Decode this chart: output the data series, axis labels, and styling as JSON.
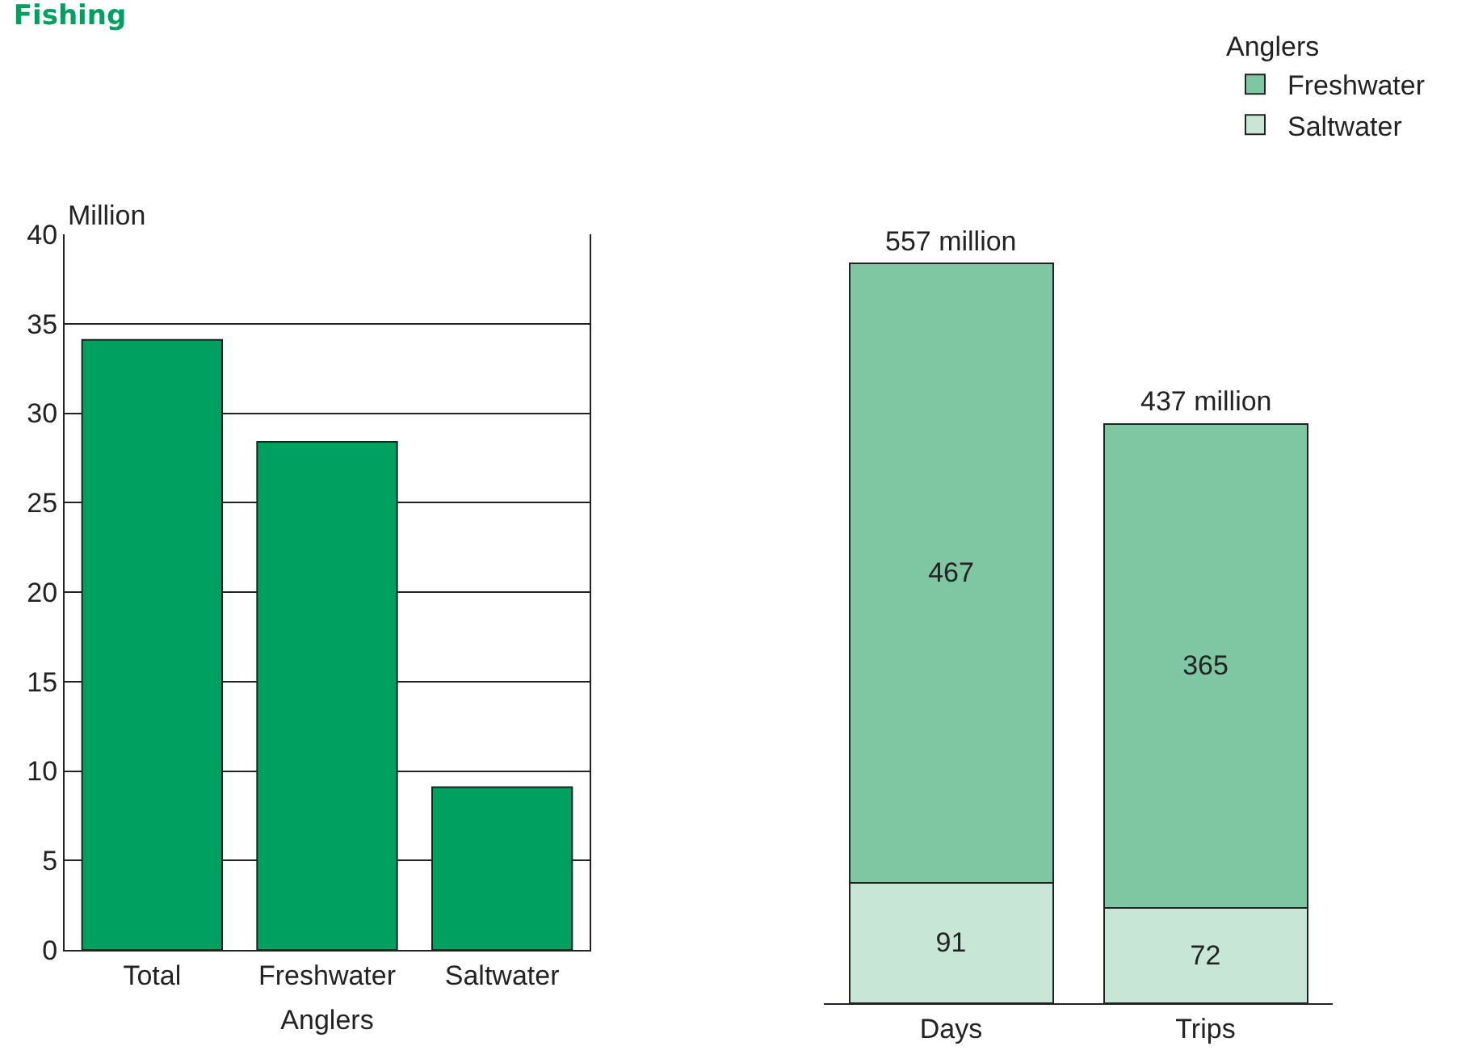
{
  "chart_data": [
    {
      "type": "bar",
      "title": "Fishing",
      "xlabel": "Anglers",
      "ylabel": "Million",
      "categories": [
        "Total",
        "Freshwater",
        "Saltwater"
      ],
      "values": [
        34.1,
        28.4,
        9.1
      ],
      "color": "#00a060",
      "ylim": [
        0,
        40
      ],
      "yticks": [
        0,
        5,
        10,
        15,
        20,
        25,
        30,
        35,
        40
      ],
      "grid": "y"
    },
    {
      "type": "bar",
      "stacked": true,
      "legend_title": "Anglers",
      "legend": "top right",
      "categories": [
        "Days",
        "Trips"
      ],
      "series": [
        {
          "name": "Saltwater",
          "color": "#c8e6d6",
          "values": [
            91,
            72
          ]
        },
        {
          "name": "Freshwater",
          "color": "#7fc6a2",
          "values": [
            467,
            365
          ]
        }
      ],
      "data_labels": true,
      "totals": [
        "557 million",
        "437 million"
      ],
      "tick_labels": "x"
    }
  ]
}
